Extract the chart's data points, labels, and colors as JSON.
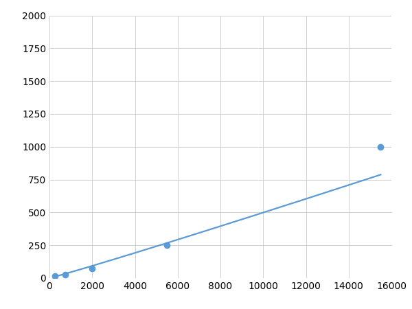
{
  "x": [
    250,
    750,
    2000,
    5500,
    15500
  ],
  "y": [
    15,
    25,
    75,
    250,
    1000
  ],
  "line_color": "#5B9BD5",
  "marker_color": "#5B9BD5",
  "marker_size": 6,
  "marker_style": "o",
  "line_width": 1.6,
  "xlim": [
    0,
    16000
  ],
  "ylim": [
    0,
    2000
  ],
  "xticks": [
    0,
    2000,
    4000,
    6000,
    8000,
    10000,
    12000,
    14000,
    16000
  ],
  "yticks": [
    0,
    250,
    500,
    750,
    1000,
    1250,
    1500,
    1750,
    2000
  ],
  "grid": true,
  "grid_color": "#d0d0d0",
  "grid_linewidth": 0.7,
  "background_color": "#ffffff",
  "fig_background": "#ffffff",
  "tick_labelsize": 10
}
